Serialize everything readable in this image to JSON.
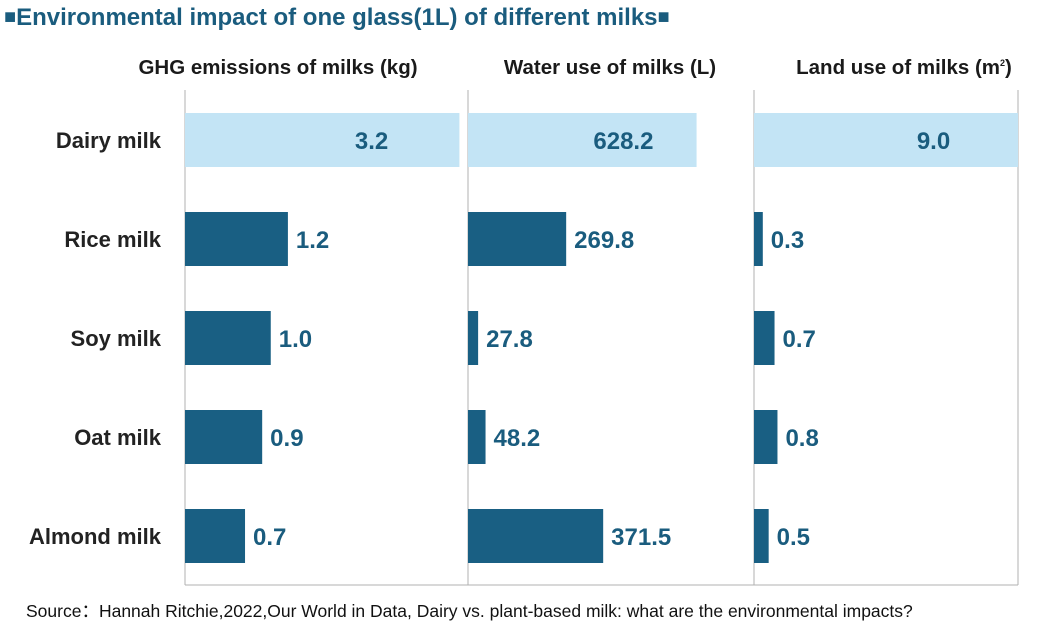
{
  "title": "Environmental impact of one glass(1L) of different milks",
  "title_marker": "■",
  "source": "Source：Hannah Ritchie,2022,Our World in Data, Dairy vs. plant-based milk: what are the environmental impacts?",
  "colors": {
    "highlight": "#c3e4f5",
    "bar": "#195f83",
    "label_dark": "#1a5c7e",
    "border": "#b0b0b0"
  },
  "chart_data": [
    {
      "type": "bar",
      "orientation": "horizontal",
      "title": "GHG emissions of milks (kg)",
      "categories": [
        "Dairy milk",
        "Rice milk",
        "Soy milk",
        "Oat milk",
        "Almond milk"
      ],
      "values": [
        3.2,
        1.2,
        1.0,
        0.9,
        0.7
      ],
      "value_labels": [
        "3.2",
        "1.2",
        "1.0",
        "0.9",
        "0.7"
      ],
      "xlim": [
        0,
        3.3
      ],
      "highlight": "Dairy milk"
    },
    {
      "type": "bar",
      "orientation": "horizontal",
      "title": "Water use of milks (L)",
      "categories": [
        "Dairy milk",
        "Rice milk",
        "Soy milk",
        "Oat milk",
        "Almond milk"
      ],
      "values": [
        628.2,
        269.8,
        27.8,
        48.2,
        371.5
      ],
      "value_labels": [
        "628.2",
        "269.8",
        "27.8",
        "48.2",
        "371.5"
      ],
      "xlim": [
        0,
        786
      ],
      "highlight": "Dairy milk"
    },
    {
      "type": "bar",
      "orientation": "horizontal",
      "title": "Land use of milks (m",
      "title_superscript": "2",
      "title_suffix": ")",
      "categories": [
        "Dairy milk",
        "Rice milk",
        "Soy milk",
        "Oat milk",
        "Almond milk"
      ],
      "values": [
        9.0,
        0.3,
        0.7,
        0.8,
        0.5
      ],
      "value_labels": [
        "9.0",
        "0.3",
        "0.7",
        "0.8",
        "0.5"
      ],
      "xlim": [
        0,
        9.0
      ],
      "highlight": "Dairy milk"
    }
  ]
}
